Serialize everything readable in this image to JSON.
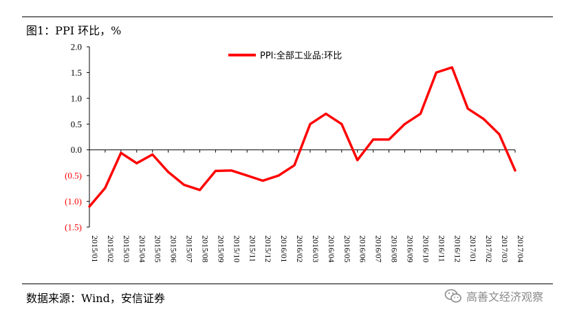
{
  "title": "图1：PPI 环比，%",
  "source": "数据来源：Wind，安信证券",
  "watermark": "高善文经济观察",
  "colors": {
    "series": "#ff0000",
    "negative_ticks": "#ff0000",
    "axis": "#000000"
  },
  "chart_data": {
    "type": "line",
    "title": "图1：PPI 环比，%",
    "xlabel": "",
    "ylabel": "",
    "ylim": [
      -1.5,
      2.0
    ],
    "yticks": [
      2.0,
      1.5,
      1.0,
      0.5,
      0.0,
      -0.5,
      -1.0,
      -1.5
    ],
    "ytick_labels": [
      "2.0",
      "1.5",
      "1.0",
      "0.5",
      "0.0",
      "(0.5)",
      "(1.0)",
      "(1.5)"
    ],
    "grid": false,
    "legend_position": "top-center",
    "categories": [
      "2015/01",
      "2015/02",
      "2015/03",
      "2015/04",
      "2015/05",
      "2015/06",
      "2015/07",
      "2015/08",
      "2015/09",
      "2015/10",
      "2015/11",
      "2015/12",
      "2016/01",
      "2016/02",
      "2016/03",
      "2016/04",
      "2016/05",
      "2016/06",
      "2016/07",
      "2016/08",
      "2016/09",
      "2016/10",
      "2016/11",
      "2016/12",
      "2017/01",
      "2017/02",
      "2017/03",
      "2017/04"
    ],
    "series": [
      {
        "name": "PPI:全部工业品:环比",
        "color": "#ff0000",
        "values": [
          -1.1,
          -0.74,
          -0.06,
          -0.26,
          -0.09,
          -0.43,
          -0.68,
          -0.78,
          -0.41,
          -0.4,
          -0.5,
          -0.6,
          -0.5,
          -0.3,
          0.5,
          0.7,
          0.5,
          -0.2,
          0.2,
          0.2,
          0.5,
          0.7,
          1.5,
          1.6,
          0.8,
          0.6,
          0.3,
          -0.4
        ]
      }
    ]
  }
}
